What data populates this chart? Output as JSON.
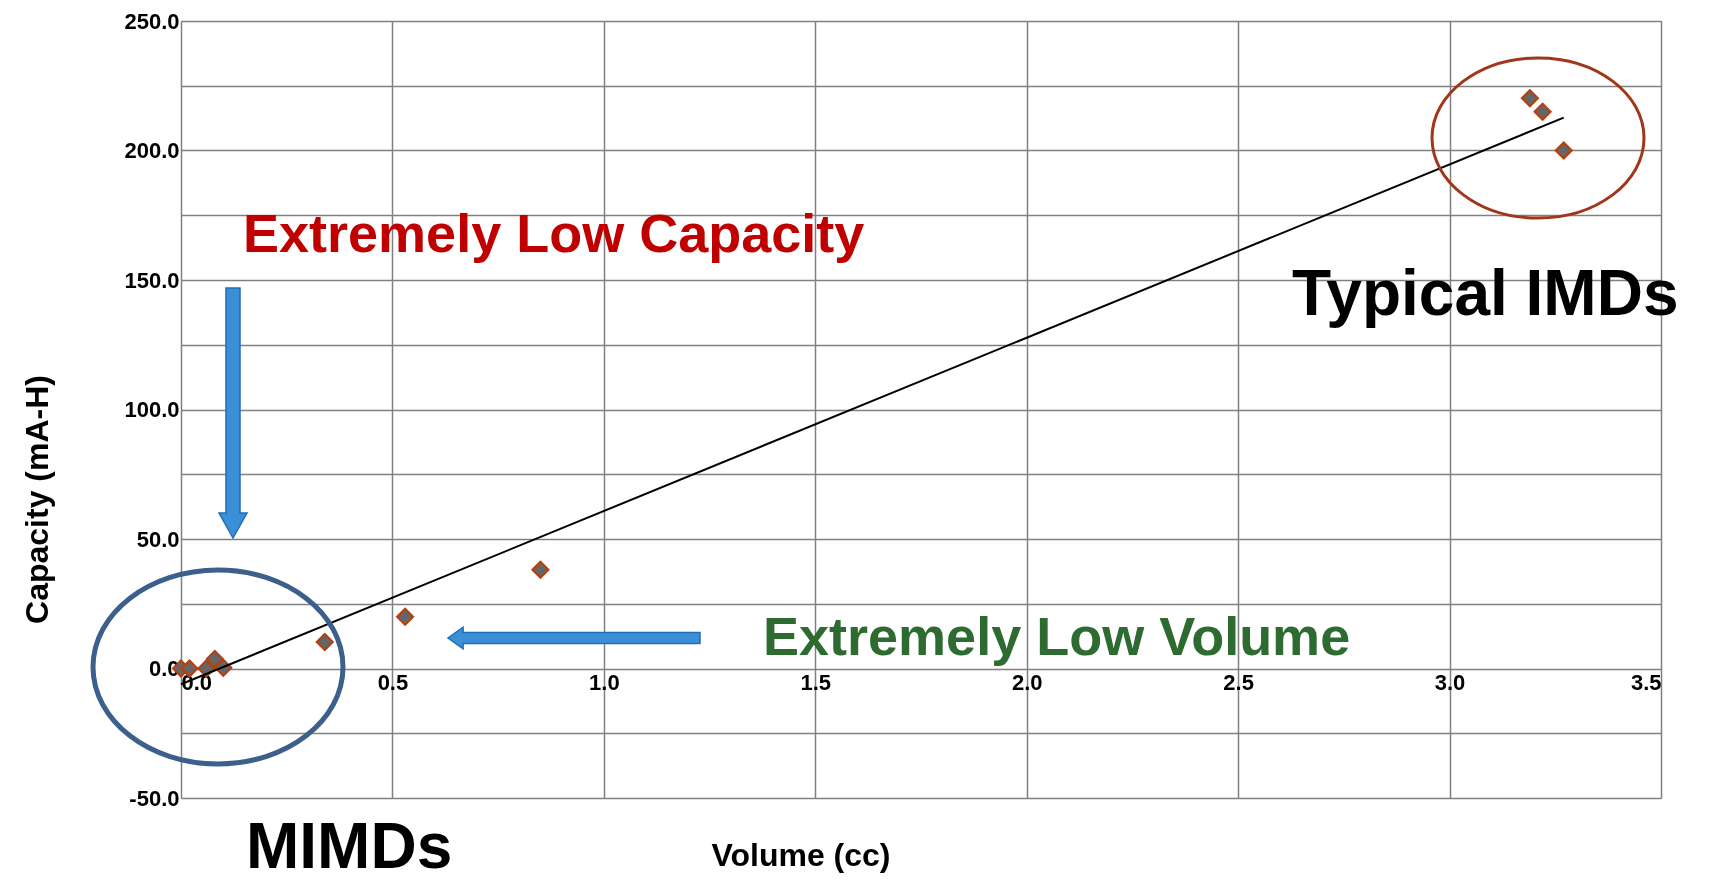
{
  "chart_data": {
    "type": "scatter",
    "xlabel": "Volume (cc)",
    "ylabel": "Capacity (mA-H)",
    "xlim": [
      0,
      3.5
    ],
    "ylim": [
      -50,
      250
    ],
    "xticks": [
      {
        "value": 0,
        "label": "0.0"
      },
      {
        "value": 0.5,
        "label": "0.5"
      },
      {
        "value": 1,
        "label": "1.0"
      },
      {
        "value": 1.5,
        "label": "1.5"
      },
      {
        "value": 2,
        "label": "2.0"
      },
      {
        "value": 2.5,
        "label": "2.5"
      },
      {
        "value": 3,
        "label": "3.0"
      },
      {
        "value": 3.5,
        "label": "3.5"
      }
    ],
    "yticks": [
      {
        "value": -50,
        "label": "-50.0"
      },
      {
        "value": -25,
        "label": null
      },
      {
        "value": 0,
        "label": "0.0"
      },
      {
        "value": 25,
        "label": null
      },
      {
        "value": 50,
        "label": "50.0"
      },
      {
        "value": 75,
        "label": null
      },
      {
        "value": 100,
        "label": "100.0"
      },
      {
        "value": 125,
        "label": null
      },
      {
        "value": 150,
        "label": "150.0"
      },
      {
        "value": 175,
        "label": null
      },
      {
        "value": 200,
        "label": "200.0"
      },
      {
        "value": 225,
        "label": null
      },
      {
        "value": 250,
        "label": "250.0"
      }
    ],
    "grid": true,
    "series": [
      {
        "marker": "diamond",
        "color": "#666666",
        "x": [
          0.0,
          0.02,
          0.06,
          0.08,
          0.1,
          0.34,
          0.53,
          0.85,
          3.19,
          3.22,
          3.27
        ],
        "values": [
          0,
          0,
          0,
          3.7,
          0.3,
          10.2,
          20,
          38.1,
          220.2,
          215,
          200
        ]
      },
      {
        "type": "line",
        "color": "#000000",
        "x": [
          0,
          3.27
        ],
        "values": [
          -6.1,
          212.7
        ]
      }
    ],
    "annotations": [
      "Extremely Low Capacity",
      "Typical IMDs",
      "Extremely Low Volume",
      "MIMDs"
    ]
  }
}
